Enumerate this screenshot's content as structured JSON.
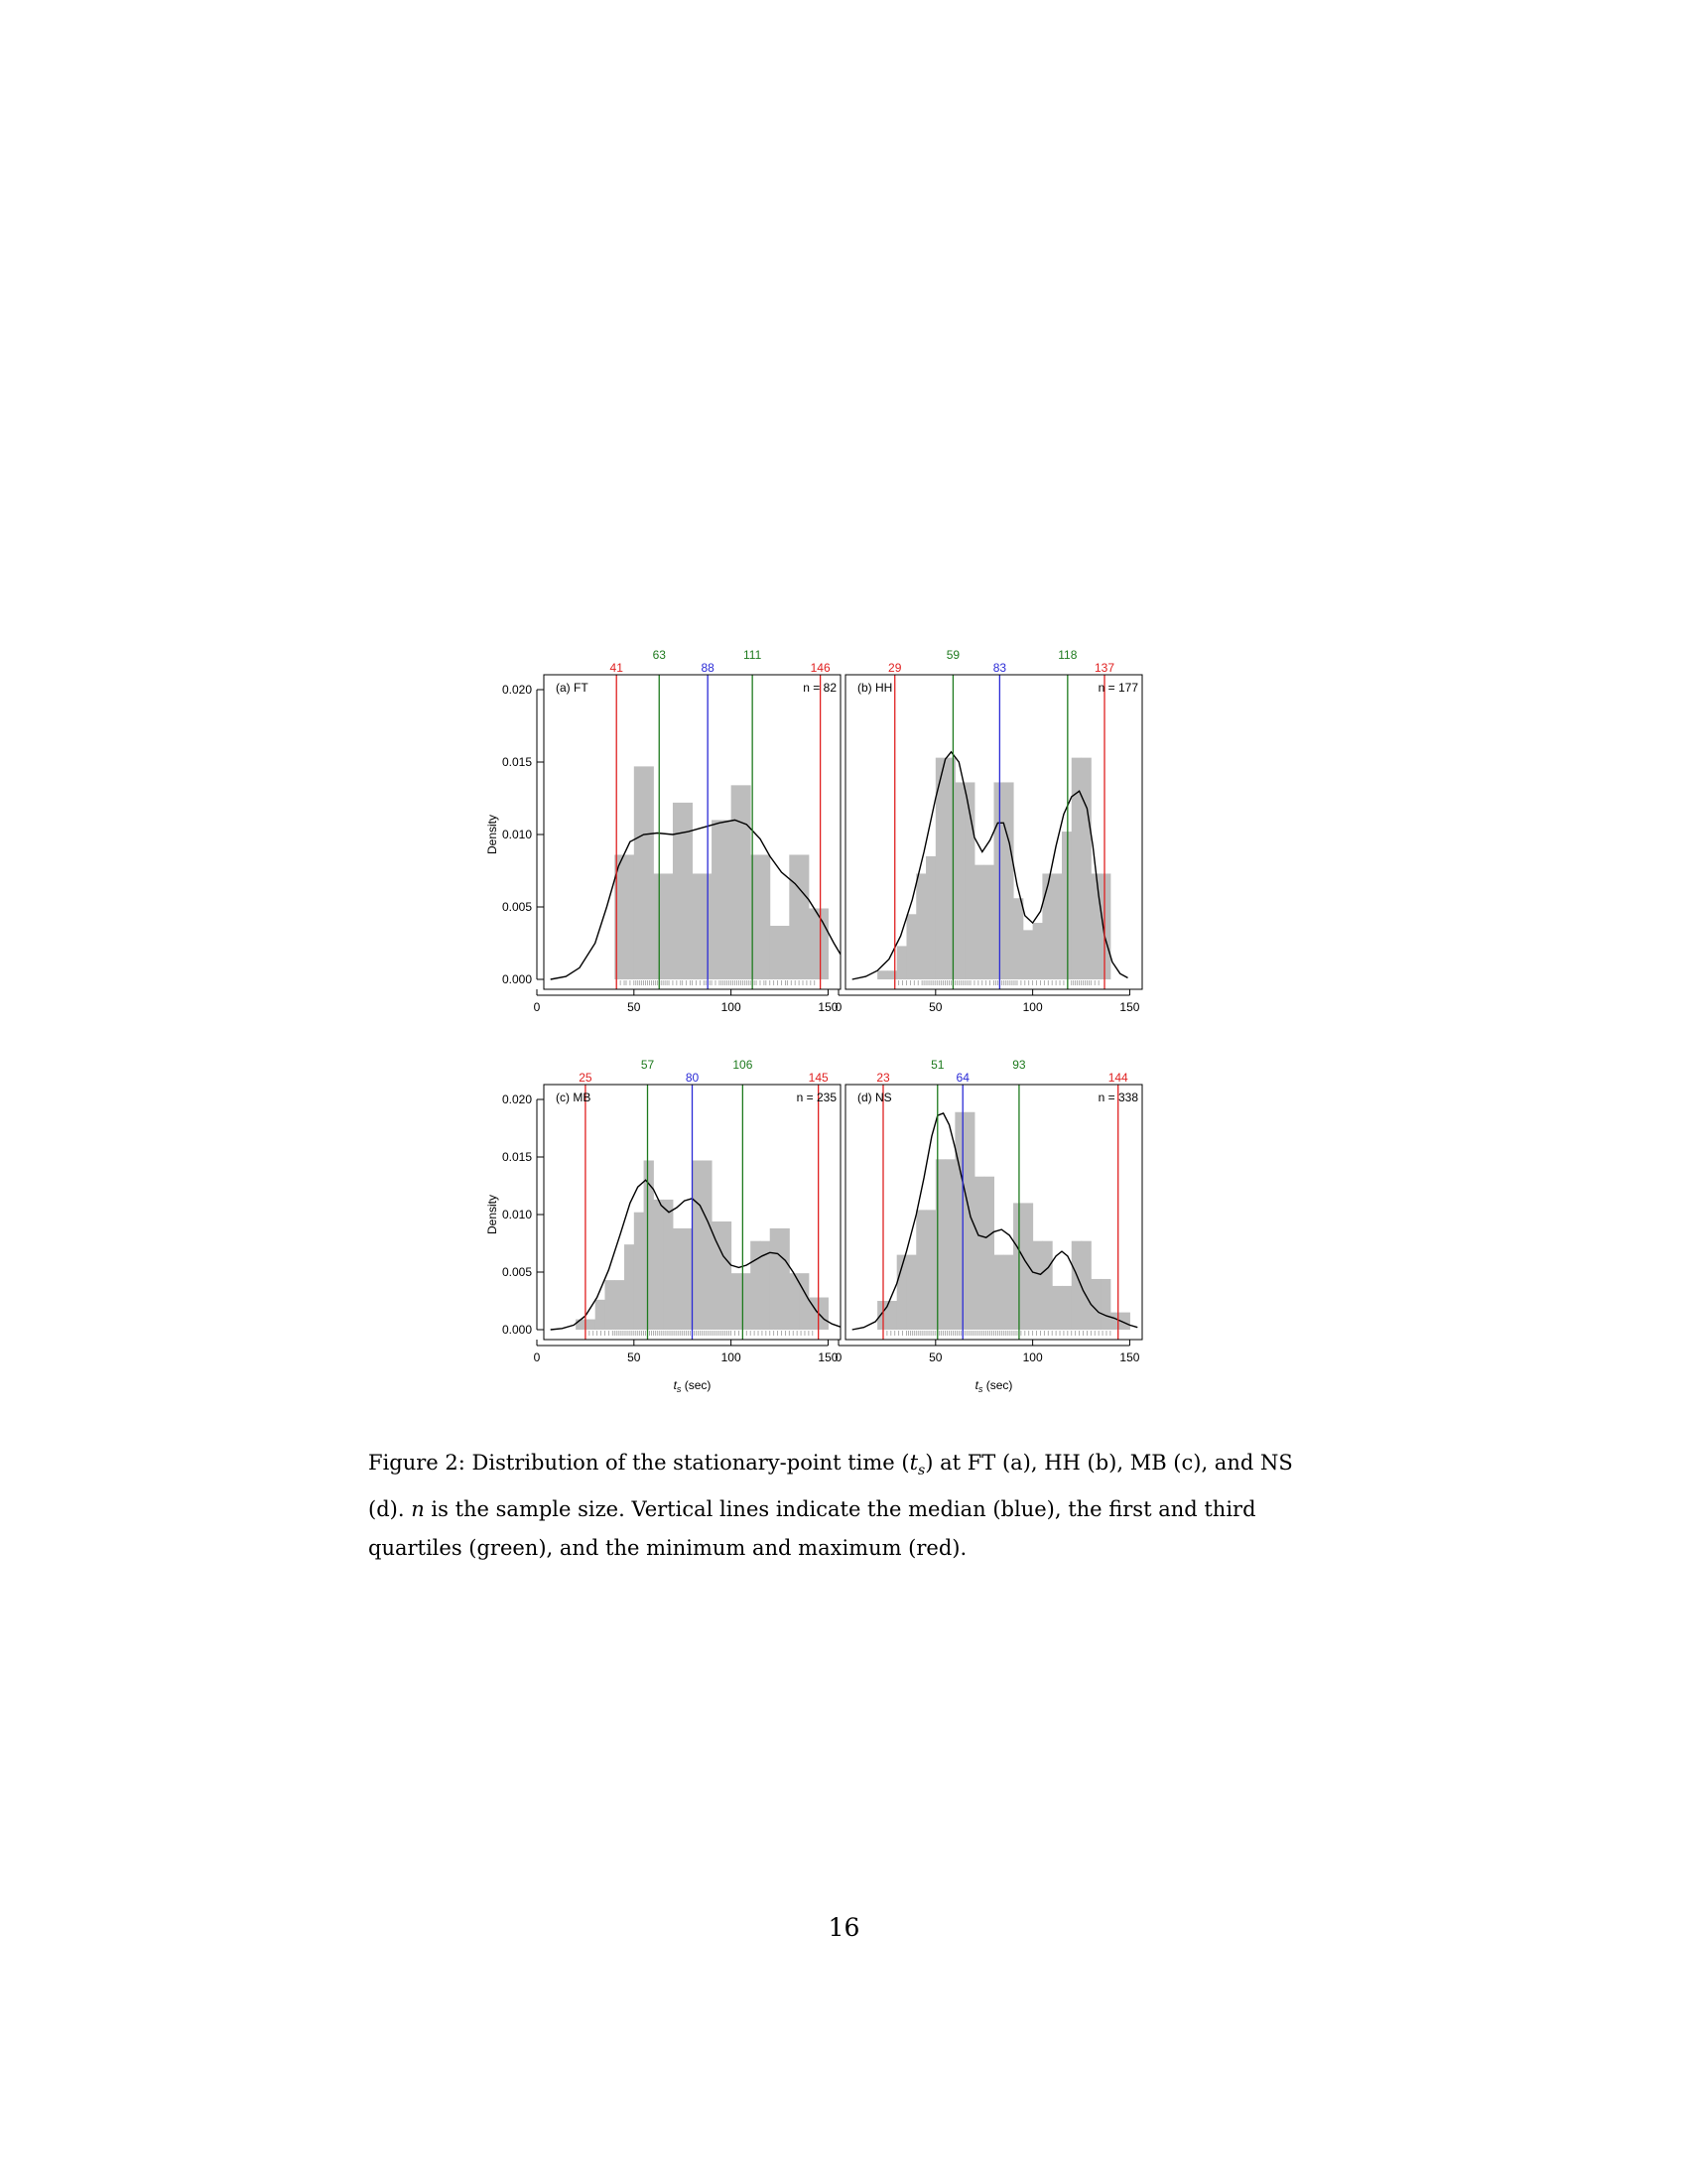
{
  "figure": {
    "y_axis_label": "Density",
    "x_axis_label": "t_s (sec)",
    "y_ticks": [
      "0.000",
      "0.005",
      "0.010",
      "0.015",
      "0.020"
    ],
    "x_ticks": [
      "0",
      "50",
      "100",
      "150"
    ]
  },
  "chart_data": [
    {
      "type": "bar",
      "panel_label": "(a) FT",
      "n_label": "n = 82",
      "min": 41,
      "q1": 63,
      "median": 88,
      "q3": 111,
      "max": 146,
      "xlim": [
        0,
        157
      ],
      "ylim": [
        0,
        0.0205
      ],
      "bin_edges": [
        40,
        50,
        60,
        70,
        80,
        90,
        100,
        110,
        120,
        130,
        140,
        150
      ],
      "density": [
        0.0086,
        0.0147,
        0.0073,
        0.0122,
        0.0073,
        0.011,
        0.0134,
        0.0086,
        0.0037,
        0.0086,
        0.0049
      ],
      "density_curve": [
        [
          7,
          0.0
        ],
        [
          15,
          0.0002
        ],
        [
          22,
          0.0008
        ],
        [
          30,
          0.0025
        ],
        [
          36,
          0.005
        ],
        [
          42,
          0.0078
        ],
        [
          48,
          0.0095
        ],
        [
          55,
          0.01
        ],
        [
          62,
          0.0101
        ],
        [
          70,
          0.01
        ],
        [
          78,
          0.0102
        ],
        [
          86,
          0.0105
        ],
        [
          94,
          0.0108
        ],
        [
          102,
          0.011
        ],
        [
          108,
          0.0107
        ],
        [
          115,
          0.0097
        ],
        [
          120,
          0.0085
        ],
        [
          126,
          0.0074
        ],
        [
          133,
          0.0066
        ],
        [
          140,
          0.0055
        ],
        [
          147,
          0.004
        ],
        [
          153,
          0.0025
        ],
        [
          157,
          0.0016
        ]
      ],
      "rug": [
        41,
        43,
        45,
        46,
        48,
        50,
        51,
        52,
        53,
        54,
        55,
        56,
        57,
        58,
        59,
        60,
        61,
        62,
        63,
        64,
        65,
        66,
        67,
        68,
        70,
        72,
        74,
        75,
        77,
        79,
        80,
        82,
        84,
        86,
        87,
        88,
        89,
        90,
        92,
        94,
        95,
        96,
        97,
        98,
        99,
        100,
        101,
        102,
        103,
        104,
        105,
        106,
        107,
        108,
        109,
        110,
        111,
        112,
        113,
        115,
        117,
        118,
        120,
        122,
        124,
        126,
        128,
        129,
        131,
        133,
        135,
        137,
        139,
        141,
        143,
        146
      ]
    },
    {
      "type": "bar",
      "panel_label": "(b) HH",
      "n_label": "n = 177",
      "min": 29,
      "q1": 59,
      "median": 83,
      "q3": 118,
      "max": 137,
      "xlim": [
        0,
        157
      ],
      "ylim": [
        0,
        0.0205
      ],
      "bin_edges": [
        20,
        25,
        30,
        35,
        40,
        45,
        50,
        55,
        60,
        65,
        70,
        75,
        80,
        85,
        90,
        95,
        100,
        105,
        110,
        115,
        120,
        125,
        130,
        135,
        140
      ],
      "density": [
        0.0006,
        0.0006,
        0.0023,
        0.0045,
        0.0073,
        0.0085,
        0.0153,
        0.0153,
        0.0136,
        0.0136,
        0.0079,
        0.0079,
        0.0136,
        0.0136,
        0.0056,
        0.0034,
        0.0039,
        0.0073,
        0.0073,
        0.0102,
        0.0153,
        0.0153,
        0.0073,
        0.0073
      ],
      "density_curve": [
        [
          7,
          0.0
        ],
        [
          14,
          0.0002
        ],
        [
          20,
          0.0006
        ],
        [
          26,
          0.0014
        ],
        [
          32,
          0.003
        ],
        [
          38,
          0.0055
        ],
        [
          44,
          0.0088
        ],
        [
          50,
          0.0125
        ],
        [
          55,
          0.0152
        ],
        [
          58,
          0.0157
        ],
        [
          62,
          0.015
        ],
        [
          66,
          0.0126
        ],
        [
          70,
          0.0098
        ],
        [
          74,
          0.0088
        ],
        [
          78,
          0.0096
        ],
        [
          82,
          0.0108
        ],
        [
          85,
          0.0108
        ],
        [
          88,
          0.0094
        ],
        [
          92,
          0.0065
        ],
        [
          96,
          0.0044
        ],
        [
          100,
          0.0039
        ],
        [
          104,
          0.0047
        ],
        [
          108,
          0.0066
        ],
        [
          112,
          0.0092
        ],
        [
          116,
          0.0114
        ],
        [
          120,
          0.0126
        ],
        [
          124,
          0.013
        ],
        [
          128,
          0.0118
        ],
        [
          131,
          0.0092
        ],
        [
          134,
          0.0058
        ],
        [
          137,
          0.003
        ],
        [
          141,
          0.0012
        ],
        [
          145,
          0.0004
        ],
        [
          149,
          0.0001
        ]
      ],
      "rug": [
        29,
        31,
        33,
        35,
        37,
        39,
        41,
        43,
        44,
        45,
        46,
        47,
        48,
        49,
        50,
        51,
        52,
        53,
        54,
        55,
        56,
        57,
        58,
        59,
        60,
        61,
        62,
        63,
        64,
        65,
        66,
        67,
        68,
        70,
        72,
        74,
        76,
        78,
        80,
        81,
        82,
        83,
        84,
        85,
        86,
        87,
        88,
        89,
        90,
        91,
        92,
        94,
        96,
        98,
        100,
        102,
        104,
        106,
        108,
        110,
        112,
        114,
        116,
        118,
        120,
        121,
        122,
        123,
        124,
        125,
        126,
        127,
        128,
        129,
        130,
        132,
        134,
        137
      ]
    },
    {
      "type": "bar",
      "panel_label": "(c) MB",
      "n_label": "n = 235",
      "min": 25,
      "q1": 57,
      "median": 80,
      "q3": 106,
      "max": 145,
      "xlim": [
        0,
        157
      ],
      "ylim": [
        0,
        0.0205
      ],
      "bin_edges": [
        20,
        25,
        30,
        35,
        40,
        45,
        50,
        55,
        60,
        65,
        70,
        75,
        80,
        85,
        90,
        95,
        100,
        105,
        110,
        115,
        120,
        125,
        130,
        135,
        140,
        145,
        150
      ],
      "density": [
        0.0009,
        0.0009,
        0.0026,
        0.0043,
        0.0043,
        0.0074,
        0.0102,
        0.0147,
        0.0113,
        0.0113,
        0.0088,
        0.0088,
        0.0147,
        0.0147,
        0.0094,
        0.0094,
        0.0049,
        0.0049,
        0.0077,
        0.0077,
        0.0088,
        0.0088,
        0.0049,
        0.0049,
        0.0028,
        0.0028
      ],
      "density_curve": [
        [
          7,
          0.0
        ],
        [
          13,
          0.0001
        ],
        [
          19,
          0.0004
        ],
        [
          25,
          0.0012
        ],
        [
          31,
          0.0028
        ],
        [
          37,
          0.0052
        ],
        [
          43,
          0.0083
        ],
        [
          48,
          0.011
        ],
        [
          52,
          0.0124
        ],
        [
          56,
          0.013
        ],
        [
          60,
          0.0122
        ],
        [
          64,
          0.0108
        ],
        [
          68,
          0.0102
        ],
        [
          72,
          0.0106
        ],
        [
          76,
          0.0112
        ],
        [
          80,
          0.0114
        ],
        [
          84,
          0.0108
        ],
        [
          88,
          0.0094
        ],
        [
          92,
          0.0078
        ],
        [
          96,
          0.0064
        ],
        [
          100,
          0.0056
        ],
        [
          104,
          0.0054
        ],
        [
          108,
          0.0056
        ],
        [
          112,
          0.006
        ],
        [
          116,
          0.0064
        ],
        [
          120,
          0.0067
        ],
        [
          124,
          0.0066
        ],
        [
          128,
          0.006
        ],
        [
          132,
          0.005
        ],
        [
          136,
          0.0038
        ],
        [
          140,
          0.0026
        ],
        [
          144,
          0.0016
        ],
        [
          148,
          0.0009
        ],
        [
          152,
          0.0005
        ],
        [
          157,
          0.0002
        ]
      ],
      "rug": [
        25,
        27,
        29,
        31,
        33,
        35,
        37,
        39,
        40,
        41,
        42,
        43,
        44,
        45,
        46,
        47,
        48,
        49,
        50,
        51,
        52,
        53,
        54,
        55,
        56,
        57,
        58,
        59,
        60,
        61,
        62,
        63,
        64,
        65,
        66,
        67,
        68,
        69,
        70,
        71,
        72,
        73,
        74,
        75,
        76,
        77,
        78,
        79,
        80,
        81,
        82,
        83,
        84,
        85,
        86,
        87,
        88,
        89,
        90,
        91,
        92,
        93,
        94,
        95,
        96,
        97,
        98,
        99,
        100,
        102,
        104,
        106,
        108,
        110,
        112,
        114,
        116,
        118,
        120,
        122,
        124,
        126,
        128,
        130,
        132,
        134,
        136,
        138,
        140,
        142,
        145
      ]
    },
    {
      "type": "bar",
      "panel_label": "(d) NS",
      "n_label": "n = 338",
      "min": 23,
      "q1": 51,
      "median": 64,
      "q3": 93,
      "max": 144,
      "xlim": [
        0,
        157
      ],
      "ylim": [
        0,
        0.0205
      ],
      "bin_edges": [
        20,
        25,
        30,
        35,
        40,
        45,
        50,
        55,
        60,
        65,
        70,
        75,
        80,
        85,
        90,
        95,
        100,
        105,
        110,
        115,
        120,
        125,
        130,
        135,
        140,
        145,
        150
      ],
      "density": [
        0.0025,
        0.0025,
        0.0065,
        0.0065,
        0.0104,
        0.0104,
        0.0148,
        0.0148,
        0.0189,
        0.0189,
        0.0133,
        0.0133,
        0.0065,
        0.0065,
        0.011,
        0.011,
        0.0077,
        0.0077,
        0.0038,
        0.0038,
        0.0077,
        0.0077,
        0.0044,
        0.0044,
        0.0015,
        0.0015
      ],
      "density_curve": [
        [
          7,
          0.0
        ],
        [
          13,
          0.0002
        ],
        [
          19,
          0.0007
        ],
        [
          25,
          0.002
        ],
        [
          30,
          0.004
        ],
        [
          35,
          0.0068
        ],
        [
          40,
          0.01
        ],
        [
          44,
          0.0132
        ],
        [
          48,
          0.0168
        ],
        [
          51,
          0.0186
        ],
        [
          54,
          0.0188
        ],
        [
          57,
          0.0178
        ],
        [
          60,
          0.0158
        ],
        [
          64,
          0.0128
        ],
        [
          68,
          0.0098
        ],
        [
          72,
          0.0082
        ],
        [
          76,
          0.008
        ],
        [
          80,
          0.0085
        ],
        [
          84,
          0.0087
        ],
        [
          88,
          0.0082
        ],
        [
          92,
          0.0072
        ],
        [
          96,
          0.006
        ],
        [
          100,
          0.005
        ],
        [
          104,
          0.0048
        ],
        [
          108,
          0.0054
        ],
        [
          112,
          0.0064
        ],
        [
          115,
          0.0068
        ],
        [
          118,
          0.0064
        ],
        [
          122,
          0.005
        ],
        [
          126,
          0.0034
        ],
        [
          130,
          0.0022
        ],
        [
          134,
          0.0015
        ],
        [
          138,
          0.0012
        ],
        [
          142,
          0.001
        ],
        [
          146,
          0.0007
        ],
        [
          150,
          0.0004
        ],
        [
          154,
          0.0002
        ]
      ],
      "rug": [
        23,
        25,
        27,
        29,
        31,
        33,
        35,
        36,
        37,
        38,
        39,
        40,
        41,
        42,
        43,
        44,
        45,
        46,
        47,
        48,
        49,
        50,
        51,
        52,
        53,
        54,
        55,
        56,
        57,
        58,
        59,
        60,
        61,
        62,
        63,
        64,
        65,
        66,
        67,
        68,
        69,
        70,
        71,
        72,
        73,
        74,
        75,
        76,
        77,
        78,
        79,
        80,
        81,
        82,
        83,
        84,
        85,
        86,
        87,
        88,
        89,
        90,
        91,
        92,
        93,
        94,
        96,
        98,
        100,
        102,
        104,
        106,
        108,
        110,
        112,
        114,
        116,
        118,
        120,
        122,
        124,
        126,
        128,
        130,
        132,
        134,
        136,
        138,
        140,
        144
      ]
    }
  ],
  "colors": {
    "histogram": "#bdbdbd",
    "median": "#2b2bd6",
    "quartiles": "#1e7a1e",
    "min_max": "#e02020",
    "curve": "#000000",
    "axis": "#000000"
  },
  "caption": {
    "label": "Figure 2:",
    "text_1": "Distribution of the stationary-point time (",
    "symbol_ts": "t_s",
    "text_2": ") at FT (a), HH (b), MB (c), and NS (d).",
    "symbol_n": "n",
    "text_3": "is the sample size. Vertical lines indicate the median (blue), the first and third quartiles (green), and the minimum and maximum (red)."
  },
  "page_number": "16"
}
